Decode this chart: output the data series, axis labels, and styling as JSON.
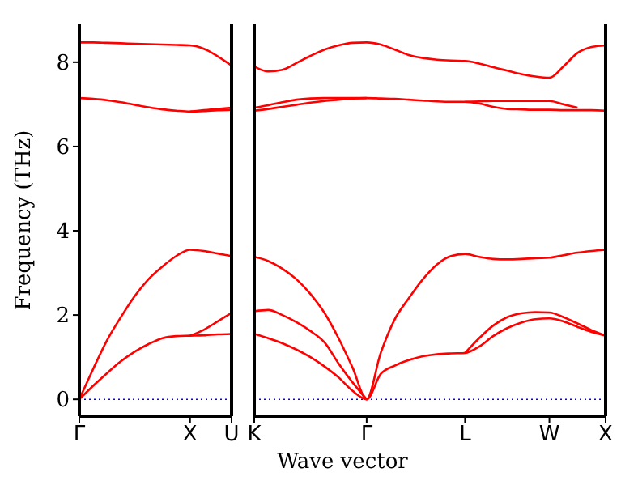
{
  "chart_data": [
    {
      "type": "line",
      "ylabel": "Frequency (THz)",
      "categories": [
        "Γ",
        null,
        null,
        null,
        null,
        null,
        null,
        null,
        "X",
        null,
        null,
        "U"
      ],
      "ylim": [
        -0.4,
        8.9
      ],
      "yticks": [
        0,
        2,
        4,
        6,
        8
      ],
      "grid": false,
      "legend": false,
      "marker": "none",
      "line_style": "solid",
      "ref_lines": [
        {
          "axis": "y",
          "value": 0,
          "color": "#0000ff",
          "line_style": "dotted"
        }
      ],
      "series": [
        {
          "color": "#ff0000",
          "values": [
            0,
            0.32,
            0.62,
            0.9,
            1.13,
            1.31,
            1.45,
            1.5,
            1.51,
            1.52,
            1.54,
            1.55
          ]
        },
        {
          "color": "#ff0000",
          "values": [
            null,
            null,
            null,
            null,
            null,
            null,
            null,
            null,
            1.51,
            1.65,
            1.85,
            2.05
          ]
        },
        {
          "color": "#ff0000",
          "values": [
            0,
            0.72,
            1.4,
            1.95,
            2.45,
            2.85,
            3.15,
            3.4,
            3.55,
            3.52,
            3.46,
            3.4
          ]
        },
        {
          "color": "#ff0000",
          "values": [
            7.15,
            7.13,
            7.1,
            7.05,
            6.99,
            6.93,
            6.88,
            6.85,
            6.83,
            6.84,
            6.86,
            6.87
          ]
        },
        {
          "color": "#ff0000",
          "values": [
            null,
            null,
            null,
            null,
            null,
            null,
            null,
            null,
            6.83,
            6.86,
            6.89,
            6.92
          ]
        },
        {
          "color": "#ff0000",
          "values": [
            8.47,
            8.47,
            8.46,
            8.45,
            8.44,
            8.43,
            8.42,
            8.41,
            8.4,
            8.32,
            8.14,
            7.92
          ]
        }
      ]
    },
    {
      "type": "line",
      "xlabel": "Wave vector",
      "tick_labels": "x",
      "categories": [
        "K",
        null,
        null,
        null,
        null,
        null,
        null,
        null,
        "Γ",
        null,
        null,
        null,
        null,
        null,
        null,
        "L",
        null,
        null,
        null,
        null,
        null,
        "W",
        null,
        null,
        null,
        "X"
      ],
      "ylim": [
        -0.4,
        8.9
      ],
      "yticks": [
        0,
        2,
        4,
        6,
        8
      ],
      "grid": false,
      "legend": false,
      "marker": "none",
      "line_style": "solid",
      "ref_lines": [
        {
          "axis": "y",
          "value": 0,
          "color": "#0000ff",
          "line_style": "dotted"
        }
      ],
      "series": [
        {
          "color": "#ff0000",
          "values": [
            1.55,
            1.45,
            1.33,
            1.18,
            1.0,
            0.78,
            0.52,
            0.2,
            0,
            0.6,
            0.8,
            0.93,
            1.02,
            1.07,
            1.09,
            1.1,
            1.25,
            1.5,
            1.69,
            1.82,
            1.9,
            1.92,
            1.85,
            1.72,
            1.6,
            1.51
          ]
        },
        {
          "color": "#ff0000",
          "values": [
            2.09,
            2.12,
            2.0,
            1.83,
            1.62,
            1.35,
            0.85,
            0.4,
            0,
            null,
            null,
            null,
            null,
            null,
            null,
            1.1,
            1.45,
            1.75,
            1.95,
            2.04,
            2.07,
            2.06,
            1.95,
            1.8,
            1.64,
            1.51
          ]
        },
        {
          "color": "#ff0000",
          "values": [
            3.38,
            3.28,
            3.1,
            2.85,
            2.5,
            2.05,
            1.45,
            0.75,
            0,
            1.1,
            1.9,
            2.4,
            2.85,
            3.2,
            3.4,
            3.45,
            3.38,
            3.33,
            3.32,
            3.33,
            3.35,
            3.36,
            3.42,
            3.48,
            3.52,
            3.55
          ]
        },
        {
          "color": "#ff0000",
          "values": [
            6.85,
            6.89,
            6.94,
            6.99,
            7.04,
            7.08,
            7.11,
            7.14,
            7.15,
            7.14,
            7.13,
            7.11,
            7.09,
            7.07,
            7.06,
            7.06,
            7.02,
            6.94,
            6.89,
            6.88,
            6.87,
            6.87,
            6.86,
            6.86,
            6.86,
            6.85
          ]
        },
        {
          "color": "#ff0000",
          "values": [
            6.92,
            6.98,
            7.05,
            7.11,
            7.14,
            7.15,
            7.15,
            7.15,
            7.15,
            null,
            null,
            null,
            null,
            null,
            null,
            7.06,
            7.07,
            7.08,
            7.08,
            7.08,
            7.08,
            7.08,
            7.0,
            6.92,
            null,
            null
          ]
        },
        {
          "color": "#ff0000",
          "values": [
            7.9,
            7.78,
            7.82,
            7.98,
            8.15,
            8.3,
            8.4,
            8.46,
            8.47,
            8.42,
            8.3,
            8.17,
            8.1,
            8.06,
            8.04,
            8.03,
            7.97,
            7.88,
            7.8,
            7.72,
            7.66,
            7.63,
            7.9,
            8.22,
            8.36,
            8.4
          ]
        }
      ]
    }
  ]
}
